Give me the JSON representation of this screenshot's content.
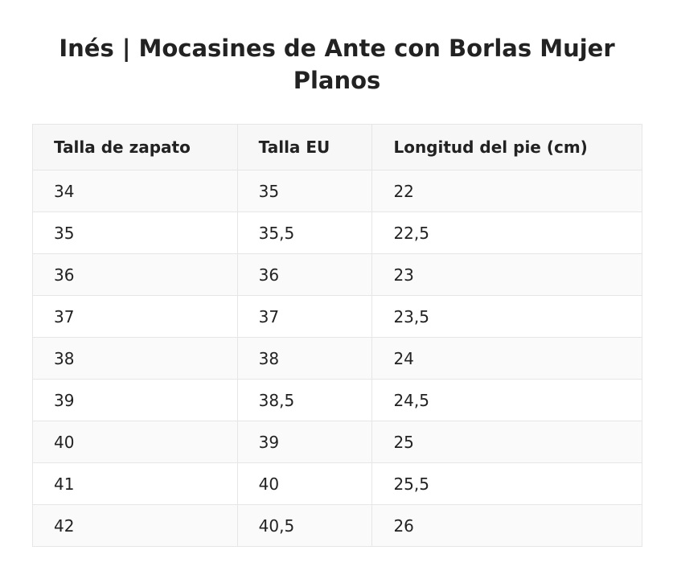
{
  "title": "Inés | Mocasines de Ante con Borlas Mujer Planos",
  "table": {
    "headers": [
      "Talla de zapato",
      "Talla EU",
      "Longitud del pie (cm)"
    ],
    "rows": [
      [
        "34",
        "35",
        "22"
      ],
      [
        "35",
        "35,5",
        "22,5"
      ],
      [
        "36",
        "36",
        "23"
      ],
      [
        "37",
        "37",
        "23,5"
      ],
      [
        "38",
        "38",
        "24"
      ],
      [
        "39",
        "38,5",
        "24,5"
      ],
      [
        "40",
        "39",
        "25"
      ],
      [
        "41",
        "40",
        "25,5"
      ],
      [
        "42",
        "40,5",
        "26"
      ]
    ]
  }
}
